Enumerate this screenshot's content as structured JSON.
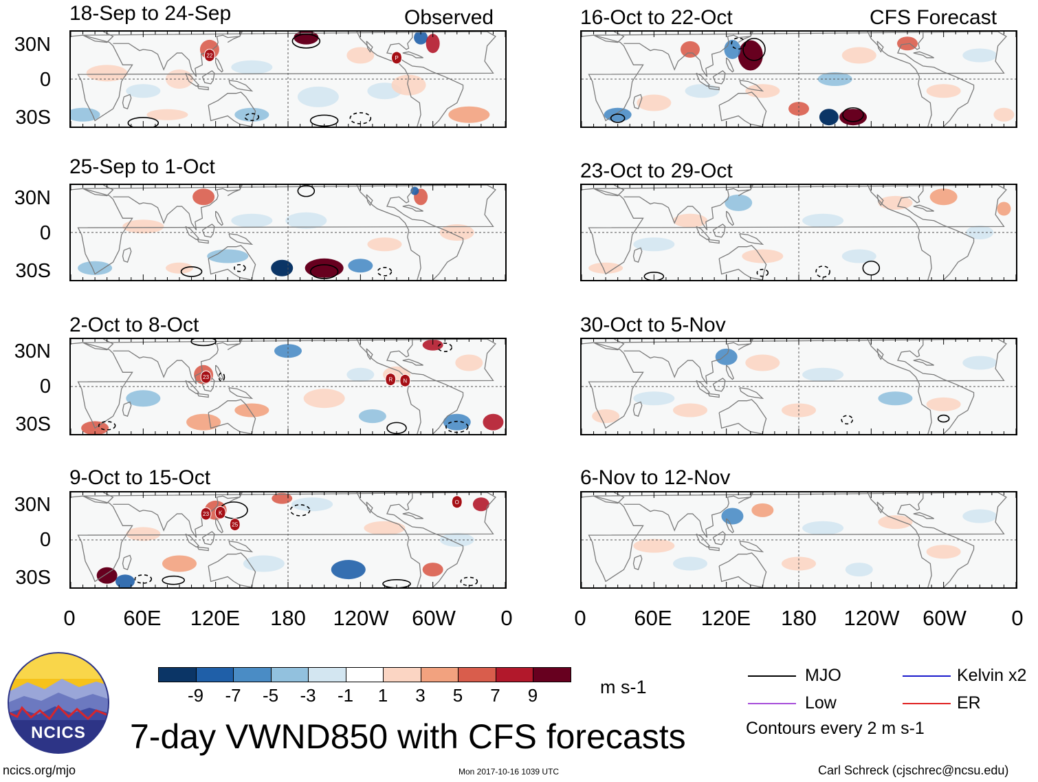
{
  "observed": {
    "label": "Observed",
    "panels": [
      {
        "title": "18-Sep to 24-Sep",
        "storms": [
          "22",
          "P"
        ]
      },
      {
        "title": "25-Sep to 1-Oct",
        "storms": []
      },
      {
        "title": "2-Oct to 8-Oct",
        "storms": [
          "23",
          "R",
          "N"
        ]
      },
      {
        "title": "9-Oct to 15-Oct",
        "storms": [
          "23",
          "K",
          "25",
          "O"
        ]
      }
    ]
  },
  "forecast": {
    "label": "CFS Forecast",
    "panels": [
      {
        "title": "16-Oct to 22-Oct"
      },
      {
        "title": "23-Oct to 29-Oct"
      },
      {
        "title": "30-Oct to 5-Nov"
      },
      {
        "title": "6-Nov to 12-Nov"
      }
    ]
  },
  "axes": {
    "lat_labels": [
      "30N",
      "0",
      "30S"
    ],
    "lon_labels": [
      "0",
      "60E",
      "120E",
      "180",
      "120W",
      "60W",
      "0"
    ]
  },
  "colorbar": {
    "labels": [
      "-9",
      "-7",
      "-5",
      "-3",
      "-1",
      "1",
      "3",
      "5",
      "7",
      "9"
    ],
    "colors": [
      "#0b3566",
      "#1f5fa8",
      "#4a8cc5",
      "#92c1de",
      "#d3e6f1",
      "#ffffff",
      "#fbd5c3",
      "#f2a27f",
      "#d95d4c",
      "#b2182b",
      "#67001f"
    ],
    "units": "m s-1"
  },
  "legend": {
    "items": [
      {
        "label": "MJO",
        "color": "#000000"
      },
      {
        "label": "Kelvin x2",
        "color": "#1a1acc"
      },
      {
        "label": "Low",
        "color": "#a64dd9"
      },
      {
        "label": "ER",
        "color": "#e02020"
      }
    ],
    "contour_note": "Contours every 2 m s-1"
  },
  "title": "7-day VWND850 with CFS forecasts",
  "logo_text": "NCICS",
  "footer": {
    "url": "ncics.org/mjo",
    "timestamp": "Mon 2017-10-16 1039 UTC",
    "credit": "Carl Schreck (cjschrec@ncsu.edu)"
  }
}
